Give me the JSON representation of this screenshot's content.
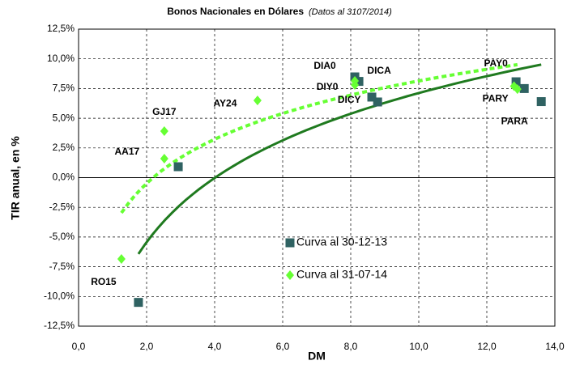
{
  "chart_data": {
    "type": "scatter",
    "title": "Bonos Nacionales en Dólares",
    "subtitle": "(Datos al 3107/2014)",
    "x_label": "DM",
    "y_label": "TIR anual, en %",
    "xlim": [
      0,
      14
    ],
    "xticks": [
      {
        "value": 0,
        "label": "0,0"
      },
      {
        "value": 2,
        "label": "2,0"
      },
      {
        "value": 4,
        "label": "4,0"
      },
      {
        "value": 6,
        "label": "6,0"
      },
      {
        "value": 8,
        "label": "8,0"
      },
      {
        "value": 10,
        "label": "10,0"
      },
      {
        "value": 12,
        "label": "12,0"
      },
      {
        "value": 14,
        "label": "14,0"
      }
    ],
    "ylim": [
      -12.5,
      12.5
    ],
    "yticks": [
      {
        "value": -12.5,
        "label": "-12,5%"
      },
      {
        "value": -10,
        "label": "-10,0%"
      },
      {
        "value": -7.5,
        "label": "-7,5%"
      },
      {
        "value": -5,
        "label": "-5,0%"
      },
      {
        "value": -2.5,
        "label": "-2,5%"
      },
      {
        "value": 0,
        "label": "0,0%"
      },
      {
        "value": 2.5,
        "label": "2,5%"
      },
      {
        "value": 5,
        "label": "5,0%"
      },
      {
        "value": 7.5,
        "label": "7,5%"
      },
      {
        "value": 10,
        "label": "10,0%"
      },
      {
        "value": 12.5,
        "label": "12,5%"
      }
    ],
    "grid": true,
    "legend": "bottom-center",
    "series": [
      {
        "name": "Curva al 30-12-13",
        "marker": "square",
        "color": "#2f6262",
        "trendline": "logarithmic",
        "trendline_color": "#1f7a1f",
        "trendline_style": "solid",
        "x": [
          1.76,
          2.93,
          8.12,
          8.24,
          8.62,
          8.79,
          12.86,
          13.1,
          13.6
        ],
        "values": [
          -10.5,
          0.92,
          8.48,
          8.1,
          6.78,
          6.37,
          8.07,
          7.5,
          6.4
        ],
        "labels": [
          null,
          null,
          "DIA0",
          "DICA",
          null,
          "DICY",
          "PAY0",
          null,
          "PARA"
        ]
      },
      {
        "name": "Curva al 31-07-14",
        "marker": "diamond",
        "color": "#66ff33",
        "trendline": "logarithmic",
        "trendline_color": "#66ff33",
        "trendline_style": "dashed",
        "x": [
          1.26,
          2.52,
          2.52,
          5.26,
          8.12,
          8.12,
          12.8,
          12.9
        ],
        "values": [
          -6.85,
          1.6,
          3.92,
          6.5,
          8.14,
          7.8,
          7.7,
          7.45
        ],
        "labels": [
          "RO15",
          "AA17",
          "GJ17",
          "AY24",
          "DIY0",
          null,
          "PARY",
          null
        ]
      }
    ]
  }
}
